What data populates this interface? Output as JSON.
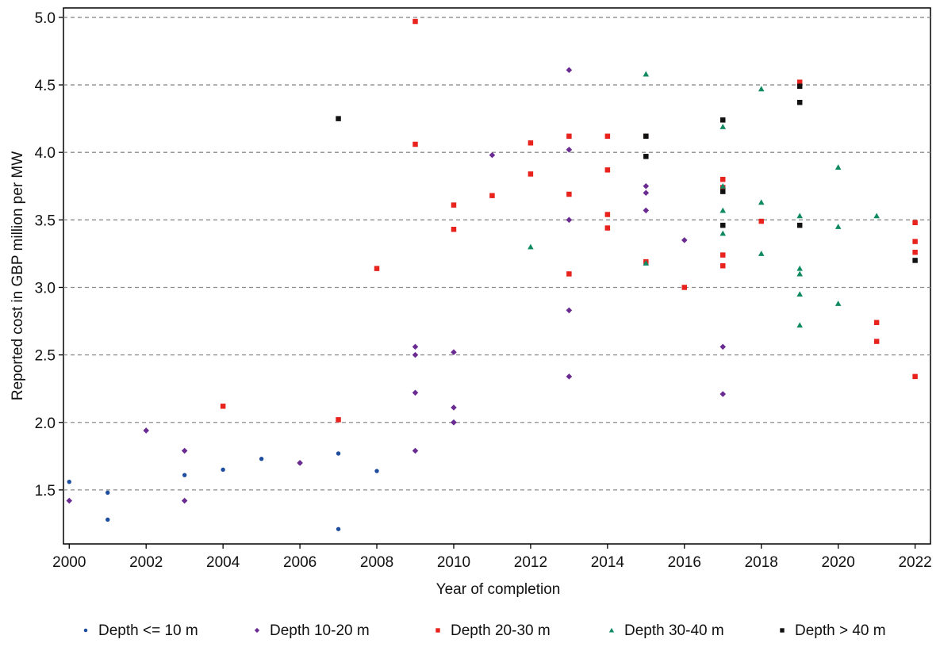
{
  "chart_data": {
    "type": "scatter",
    "title": "",
    "xlabel": "Year of completion",
    "ylabel": "Reported cost in GBP million per MW",
    "xlim": [
      1999.85,
      2022.4
    ],
    "ylim": [
      1.1,
      5.07
    ],
    "xticks": [
      2000,
      2002,
      2004,
      2006,
      2008,
      2010,
      2012,
      2014,
      2016,
      2018,
      2020,
      2022
    ],
    "yticks": [
      1.5,
      2.0,
      2.5,
      3.0,
      3.5,
      4.0,
      4.5,
      5.0
    ],
    "ytick_labels": [
      "1.5",
      "2.0",
      "2.5",
      "3.0",
      "3.5",
      "4.0",
      "4.5",
      "5.0"
    ],
    "grid": "horizontal-dashed",
    "legend_position": "bottom",
    "series": [
      {
        "name": "Depth <= 10 m",
        "color": "#1f4e9e",
        "marker": "circle",
        "points": [
          [
            2000,
            1.56
          ],
          [
            2001,
            1.48
          ],
          [
            2001,
            1.28
          ],
          [
            2003,
            1.61
          ],
          [
            2004,
            1.65
          ],
          [
            2005,
            1.73
          ],
          [
            2006,
            1.7
          ],
          [
            2007,
            1.77
          ],
          [
            2007,
            1.21
          ],
          [
            2008,
            1.64
          ]
        ]
      },
      {
        "name": "Depth 10-20 m",
        "color": "#6a2c91",
        "marker": "diamond",
        "points": [
          [
            2000,
            1.42
          ],
          [
            2002,
            1.94
          ],
          [
            2003,
            1.79
          ],
          [
            2003,
            1.42
          ],
          [
            2006,
            1.7
          ],
          [
            2009,
            2.56
          ],
          [
            2009,
            2.5
          ],
          [
            2009,
            2.22
          ],
          [
            2009,
            1.79
          ],
          [
            2010,
            2.52
          ],
          [
            2010,
            2.11
          ],
          [
            2010,
            2.0
          ],
          [
            2010,
            2.0
          ],
          [
            2011,
            3.98
          ],
          [
            2013,
            4.61
          ],
          [
            2013,
            4.02
          ],
          [
            2013,
            3.5
          ],
          [
            2013,
            2.83
          ],
          [
            2013,
            2.34
          ],
          [
            2015,
            3.75
          ],
          [
            2015,
            3.7
          ],
          [
            2015,
            3.57
          ],
          [
            2016,
            3.35
          ],
          [
            2017,
            2.56
          ],
          [
            2017,
            2.21
          ]
        ]
      },
      {
        "name": "Depth 20-30 m",
        "color": "#e8231e",
        "marker": "square",
        "points": [
          [
            2004,
            2.12
          ],
          [
            2007,
            2.02
          ],
          [
            2008,
            3.14
          ],
          [
            2009,
            4.97
          ],
          [
            2009,
            4.06
          ],
          [
            2010,
            3.61
          ],
          [
            2010,
            3.43
          ],
          [
            2011,
            3.68
          ],
          [
            2012,
            4.07
          ],
          [
            2012,
            3.84
          ],
          [
            2013,
            4.12
          ],
          [
            2013,
            3.69
          ],
          [
            2013,
            3.1
          ],
          [
            2014,
            4.12
          ],
          [
            2014,
            3.87
          ],
          [
            2014,
            3.54
          ],
          [
            2014,
            3.44
          ],
          [
            2015,
            4.12
          ],
          [
            2015,
            3.19
          ],
          [
            2016,
            3.0
          ],
          [
            2017,
            3.8
          ],
          [
            2017,
            3.74
          ],
          [
            2017,
            3.24
          ],
          [
            2017,
            3.16
          ],
          [
            2018,
            3.49
          ],
          [
            2019,
            4.52
          ],
          [
            2021,
            2.74
          ],
          [
            2021,
            2.6
          ],
          [
            2022,
            3.48
          ],
          [
            2022,
            3.34
          ],
          [
            2022,
            3.26
          ],
          [
            2022,
            2.34
          ]
        ]
      },
      {
        "name": "Depth 30-40 m",
        "color": "#0f8a63",
        "marker": "triangle",
        "points": [
          [
            2012,
            3.3
          ],
          [
            2015,
            4.58
          ],
          [
            2015,
            3.18
          ],
          [
            2017,
            4.19
          ],
          [
            2017,
            3.75
          ],
          [
            2017,
            3.57
          ],
          [
            2017,
            3.4
          ],
          [
            2018,
            4.47
          ],
          [
            2018,
            3.63
          ],
          [
            2018,
            3.25
          ],
          [
            2019,
            3.53
          ],
          [
            2019,
            3.14
          ],
          [
            2019,
            3.1
          ],
          [
            2019,
            2.95
          ],
          [
            2019,
            2.72
          ],
          [
            2020,
            3.89
          ],
          [
            2020,
            3.45
          ],
          [
            2020,
            2.88
          ],
          [
            2021,
            3.53
          ]
        ]
      },
      {
        "name": "Depth > 40 m",
        "color": "#111111",
        "marker": "square",
        "points": [
          [
            2007,
            4.25
          ],
          [
            2015,
            4.12
          ],
          [
            2015,
            3.97
          ],
          [
            2017,
            4.24
          ],
          [
            2017,
            3.71
          ],
          [
            2017,
            3.46
          ],
          [
            2019,
            4.49
          ],
          [
            2019,
            4.37
          ],
          [
            2019,
            3.46
          ],
          [
            2022,
            3.2
          ]
        ]
      }
    ]
  }
}
